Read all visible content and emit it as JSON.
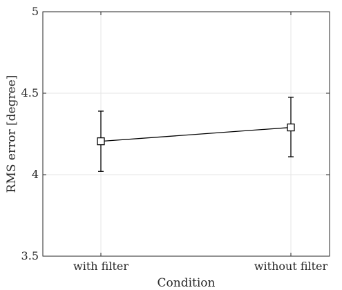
{
  "chart_data": {
    "type": "line",
    "title": "",
    "xlabel": "Condition",
    "ylabel": "RMS error [degree]",
    "categories": [
      "with filter",
      "without filter"
    ],
    "series": [
      {
        "values": [
          4.205,
          4.29
        ],
        "error_low": [
          4.02,
          4.11
        ],
        "error_high": [
          4.39,
          4.475
        ]
      }
    ],
    "ylim": [
      3.5,
      5
    ],
    "yticks": [
      3.5,
      4,
      4.5,
      5
    ],
    "ytick_labels": [
      "3.5",
      "4",
      "4.5",
      "5"
    ],
    "grid": true,
    "marker": "open-square",
    "line_color": "#000000",
    "grid_color": "#e6e6e6",
    "axis_color": "#262626"
  }
}
